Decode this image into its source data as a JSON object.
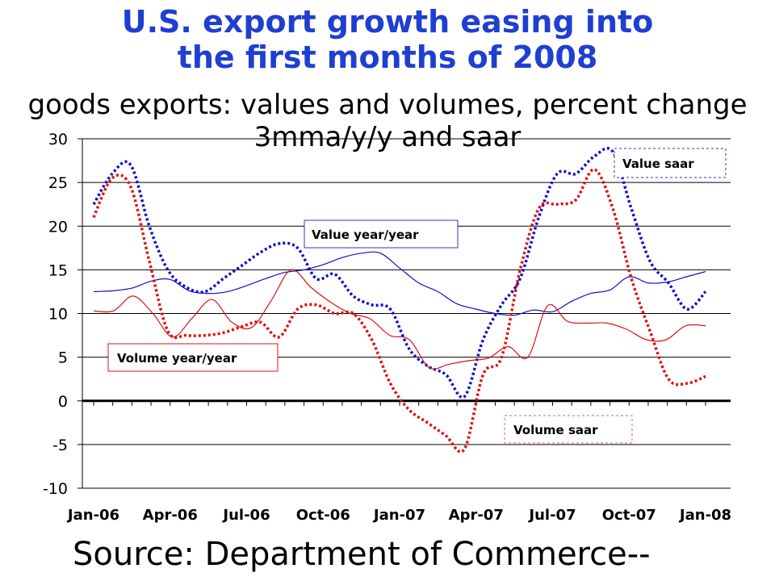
{
  "title_line1": "U.S. export growth easing into",
  "title_line2": "the first months of 2008",
  "subtitle_line1": "goods exports: values and volumes, percent change",
  "subtitle_line2": "3mma/y/y and saar",
  "source": "Source: Department of Commerce--",
  "colors": {
    "title": "#1f3fd1",
    "value": "#1010c8",
    "volume": "#e01010",
    "value_box": "#3333cc",
    "volume_box": "#e06060"
  },
  "chart_data": {
    "type": "line",
    "x_ticks": [
      "Jan-06",
      "Apr-06",
      "Jul-06",
      "Oct-06",
      "Jan-07",
      "Apr-07",
      "Jul-07",
      "Oct-07",
      "Jan-08"
    ],
    "ylim": [
      -10,
      30
    ],
    "y_ticks": [
      30,
      25,
      20,
      15,
      10,
      5,
      0,
      -5,
      -10
    ],
    "series": [
      {
        "name": "Value year/year",
        "style": "solid",
        "color": "#1010c8",
        "values": [
          12.5,
          12.6,
          12.9,
          13.7,
          13.9,
          12.6,
          12.3,
          12.5,
          13.2,
          14.0,
          14.7,
          15.0,
          15.6,
          16.4,
          16.9,
          16.9,
          15.2,
          13.5,
          12.5,
          11.1,
          10.5,
          10.0,
          9.8,
          10.4,
          10.2,
          11.4,
          12.3,
          12.7,
          14.2,
          13.5,
          13.6,
          14.2,
          14.8
        ]
      },
      {
        "name": "Value saar",
        "style": "dotted",
        "color": "#1010c8",
        "values": [
          22.5,
          26.0,
          27.0,
          20.0,
          15.0,
          13.0,
          12.5,
          14.0,
          15.5,
          17.0,
          18.0,
          17.5,
          14.0,
          14.5,
          12.0,
          11.0,
          10.5,
          6.0,
          4.0,
          3.0,
          0.5,
          7.0,
          11.0,
          14.0,
          21.0,
          26.0,
          26.0,
          28.0,
          28.5,
          22.0,
          16.0,
          13.5,
          10.5,
          12.5
        ]
      },
      {
        "name": "Volume year/year",
        "style": "solid",
        "color": "#e01010",
        "values": [
          10.3,
          10.3,
          12.0,
          10.0,
          7.3,
          9.5,
          11.6,
          9.0,
          8.4,
          11.5,
          15.0,
          13.0,
          11.3,
          10.0,
          9.4,
          7.5,
          7.0,
          3.8,
          4.2,
          4.6,
          4.9,
          6.2,
          5.0,
          10.9,
          9.1,
          8.9,
          8.9,
          8.2,
          7.0,
          7.0,
          8.6,
          8.6
        ]
      },
      {
        "name": "Volume saar",
        "style": "dotted",
        "color": "#e01010",
        "values": [
          21.0,
          25.5,
          24.5,
          16.0,
          8.0,
          7.5,
          7.5,
          7.8,
          8.5,
          9.0,
          7.3,
          10.5,
          11.0,
          10.0,
          10.0,
          7.0,
          2.0,
          -1.0,
          -2.5,
          -4.0,
          -5.5,
          3.0,
          5.0,
          15.0,
          22.0,
          22.5,
          23.0,
          26.5,
          22.0,
          14.0,
          8.0,
          2.5,
          2.0,
          2.8
        ]
      }
    ],
    "legend": [
      {
        "text": "Value year/year",
        "series": 0
      },
      {
        "text": "Value saar",
        "series": 1
      },
      {
        "text": "Volume year/year",
        "series": 2
      },
      {
        "text": "Volume saar",
        "series": 3
      }
    ],
    "grid": true
  }
}
